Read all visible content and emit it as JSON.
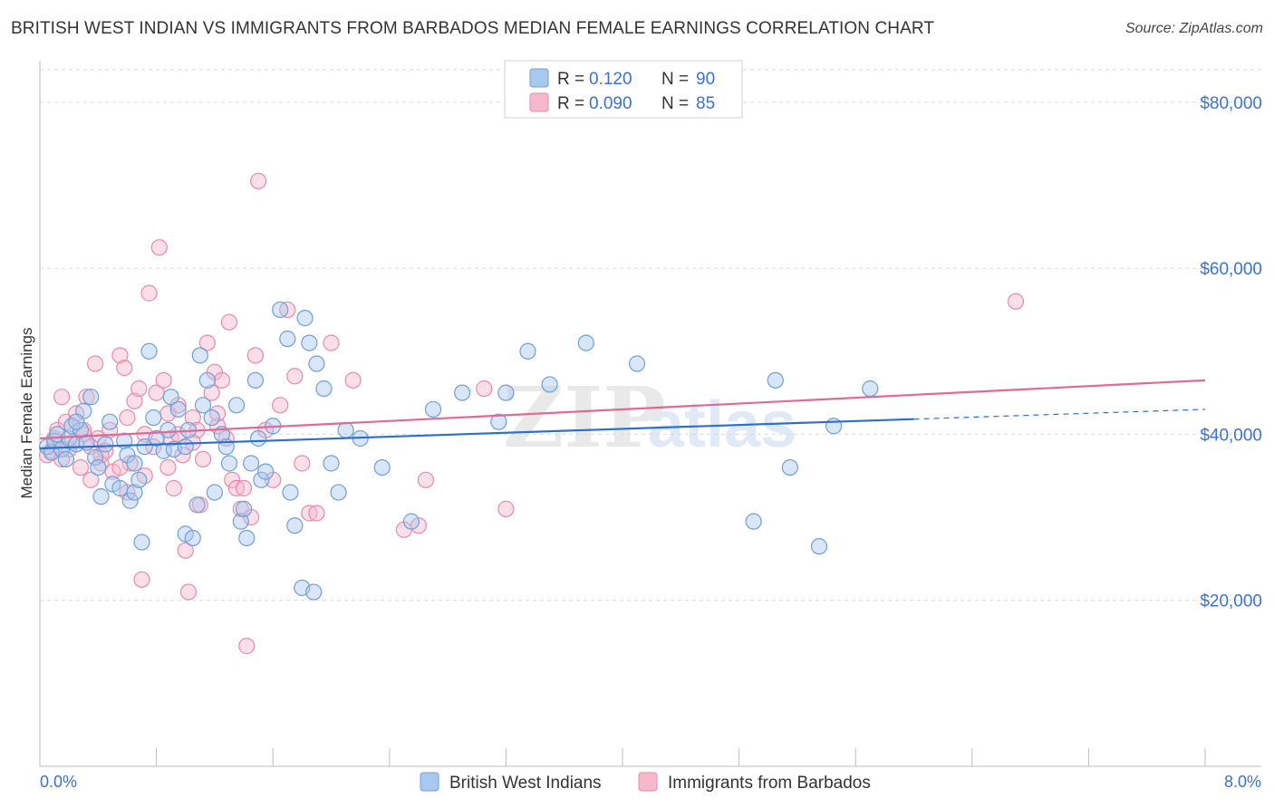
{
  "title": "BRITISH WEST INDIAN VS IMMIGRANTS FROM BARBADOS MEDIAN FEMALE EARNINGS CORRELATION CHART",
  "source": "Source: ZipAtlas.com",
  "watermark": {
    "zip": "ZIP",
    "atlas": "atlas"
  },
  "colors": {
    "blue_fill": "#a9c8f0",
    "blue_stroke": "#6f9fd8",
    "blue_line": "#2b6fcc",
    "pink_fill": "#f6b8cb",
    "pink_stroke": "#e88aa8",
    "pink_line": "#e06a95",
    "axis_value": "#3a73cc",
    "grid": "#d9d9d9"
  },
  "legend": {
    "items": [
      {
        "r_label": "R =",
        "r_value": "0.120",
        "n_label": "N =",
        "n_value": "90"
      },
      {
        "r_label": "R =",
        "r_value": "0.090",
        "n_label": "N =",
        "n_value": "85"
      }
    ]
  },
  "bottom_legend": [
    "British West Indians",
    "Immigrants from Barbados"
  ],
  "chart_data": {
    "type": "scatter",
    "xlabel": "",
    "ylabel": "Median Female Earnings",
    "xlim": [
      0,
      8
    ],
    "ylim": [
      0,
      85000
    ],
    "x_tick_labels": [
      "0.0%",
      "8.0%"
    ],
    "y_ticks": [
      20000,
      40000,
      60000,
      80000
    ],
    "y_tick_labels": [
      "$20,000",
      "$40,000",
      "$60,000",
      "$80,000"
    ],
    "grid": true,
    "legend_position": "top-center",
    "series": [
      {
        "name": "British West Indians",
        "r": 0.12,
        "n": 90,
        "trend": {
          "x0": 0,
          "y0": 38300,
          "x1": 8,
          "y1": 43000,
          "solid_until": 6.0
        },
        "points": [
          [
            0.05,
            38500
          ],
          [
            0.08,
            37800
          ],
          [
            0.1,
            39200
          ],
          [
            0.12,
            40000
          ],
          [
            0.15,
            38200
          ],
          [
            0.18,
            37000
          ],
          [
            0.2,
            39500
          ],
          [
            0.22,
            41000
          ],
          [
            0.25,
            38800
          ],
          [
            0.28,
            40500
          ],
          [
            0.3,
            42800
          ],
          [
            0.32,
            39000
          ],
          [
            0.35,
            44500
          ],
          [
            0.38,
            37200
          ],
          [
            0.4,
            36000
          ],
          [
            0.42,
            32500
          ],
          [
            0.45,
            38800
          ],
          [
            0.48,
            41500
          ],
          [
            0.5,
            34000
          ],
          [
            0.55,
            33500
          ],
          [
            0.58,
            39200
          ],
          [
            0.6,
            37500
          ],
          [
            0.62,
            32000
          ],
          [
            0.65,
            33000
          ],
          [
            0.68,
            34500
          ],
          [
            0.7,
            27000
          ],
          [
            0.72,
            38500
          ],
          [
            0.75,
            50000
          ],
          [
            0.78,
            42000
          ],
          [
            0.8,
            39500
          ],
          [
            0.85,
            38000
          ],
          [
            0.88,
            40500
          ],
          [
            0.9,
            44500
          ],
          [
            0.92,
            38200
          ],
          [
            0.95,
            43000
          ],
          [
            1.0,
            28000
          ],
          [
            1.02,
            40500
          ],
          [
            1.05,
            27500
          ],
          [
            1.08,
            31500
          ],
          [
            1.1,
            49500
          ],
          [
            1.12,
            43500
          ],
          [
            1.15,
            46500
          ],
          [
            1.18,
            42000
          ],
          [
            1.2,
            33000
          ],
          [
            1.25,
            40000
          ],
          [
            1.28,
            38500
          ],
          [
            1.3,
            36500
          ],
          [
            1.35,
            43500
          ],
          [
            1.38,
            29500
          ],
          [
            1.4,
            31000
          ],
          [
            1.42,
            27500
          ],
          [
            1.45,
            36500
          ],
          [
            1.48,
            46500
          ],
          [
            1.5,
            39500
          ],
          [
            1.52,
            34500
          ],
          [
            1.55,
            35500
          ],
          [
            1.6,
            41000
          ],
          [
            1.65,
            55000
          ],
          [
            1.7,
            51500
          ],
          [
            1.72,
            33000
          ],
          [
            1.75,
            29000
          ],
          [
            1.8,
            21500
          ],
          [
            1.82,
            54000
          ],
          [
            1.85,
            51000
          ],
          [
            1.88,
            21000
          ],
          [
            1.9,
            48500
          ],
          [
            1.95,
            45500
          ],
          [
            2.0,
            36500
          ],
          [
            2.05,
            33000
          ],
          [
            2.1,
            40500
          ],
          [
            2.2,
            39500
          ],
          [
            2.35,
            36000
          ],
          [
            2.55,
            29500
          ],
          [
            2.7,
            43000
          ],
          [
            2.9,
            45000
          ],
          [
            3.15,
            41500
          ],
          [
            3.2,
            45000
          ],
          [
            3.35,
            50000
          ],
          [
            3.5,
            46000
          ],
          [
            3.75,
            51000
          ],
          [
            4.1,
            48500
          ],
          [
            4.9,
            29500
          ],
          [
            5.05,
            46500
          ],
          [
            5.15,
            36000
          ],
          [
            5.35,
            26500
          ],
          [
            5.45,
            41000
          ],
          [
            5.7,
            45500
          ],
          [
            0.25,
            41500
          ],
          [
            0.65,
            36500
          ],
          [
            1.0,
            38500
          ]
        ]
      },
      {
        "name": "Immigrants from Barbados",
        "r": 0.09,
        "n": 85,
        "trend": {
          "x0": 0,
          "y0": 39500,
          "x1": 8,
          "y1": 46500,
          "solid_until": 8.0
        },
        "points": [
          [
            0.05,
            37500
          ],
          [
            0.08,
            38000
          ],
          [
            0.1,
            39500
          ],
          [
            0.12,
            40500
          ],
          [
            0.15,
            37000
          ],
          [
            0.18,
            41500
          ],
          [
            0.2,
            38200
          ],
          [
            0.22,
            39000
          ],
          [
            0.25,
            42500
          ],
          [
            0.28,
            36000
          ],
          [
            0.3,
            40000
          ],
          [
            0.32,
            44500
          ],
          [
            0.35,
            34500
          ],
          [
            0.38,
            48500
          ],
          [
            0.4,
            39500
          ],
          [
            0.42,
            36500
          ],
          [
            0.45,
            38000
          ],
          [
            0.48,
            40500
          ],
          [
            0.5,
            35500
          ],
          [
            0.55,
            49500
          ],
          [
            0.58,
            48000
          ],
          [
            0.6,
            42000
          ],
          [
            0.62,
            36500
          ],
          [
            0.65,
            44000
          ],
          [
            0.68,
            45500
          ],
          [
            0.7,
            22500
          ],
          [
            0.72,
            35000
          ],
          [
            0.75,
            57000
          ],
          [
            0.78,
            38500
          ],
          [
            0.8,
            45000
          ],
          [
            0.82,
            62500
          ],
          [
            0.85,
            46500
          ],
          [
            0.88,
            42500
          ],
          [
            0.9,
            39500
          ],
          [
            0.92,
            33500
          ],
          [
            0.95,
            40000
          ],
          [
            0.98,
            37500
          ],
          [
            1.0,
            26000
          ],
          [
            1.02,
            21000
          ],
          [
            1.05,
            42000
          ],
          [
            1.08,
            40500
          ],
          [
            1.1,
            31500
          ],
          [
            1.12,
            37000
          ],
          [
            1.15,
            51000
          ],
          [
            1.18,
            45000
          ],
          [
            1.2,
            47500
          ],
          [
            1.22,
            41000
          ],
          [
            1.25,
            46500
          ],
          [
            1.28,
            39500
          ],
          [
            1.3,
            53500
          ],
          [
            1.32,
            34500
          ],
          [
            1.35,
            33500
          ],
          [
            1.38,
            31000
          ],
          [
            1.4,
            33500
          ],
          [
            1.42,
            14500
          ],
          [
            1.45,
            30000
          ],
          [
            1.48,
            49500
          ],
          [
            1.5,
            70500
          ],
          [
            1.55,
            40500
          ],
          [
            1.6,
            34500
          ],
          [
            1.65,
            43500
          ],
          [
            1.7,
            55000
          ],
          [
            1.75,
            47000
          ],
          [
            1.8,
            36500
          ],
          [
            1.85,
            30500
          ],
          [
            1.9,
            30500
          ],
          [
            2.0,
            51000
          ],
          [
            2.15,
            46500
          ],
          [
            2.5,
            28500
          ],
          [
            2.6,
            29000
          ],
          [
            2.65,
            34500
          ],
          [
            3.05,
            45500
          ],
          [
            3.2,
            31000
          ],
          [
            0.15,
            44500
          ],
          [
            0.35,
            38500
          ],
          [
            0.55,
            36000
          ],
          [
            0.72,
            40000
          ],
          [
            0.88,
            36000
          ],
          [
            1.05,
            39000
          ],
          [
            1.22,
            42500
          ],
          [
            0.6,
            33000
          ],
          [
            0.42,
            37500
          ],
          [
            0.3,
            40500
          ],
          [
            6.7,
            56000
          ],
          [
            0.95,
            43500
          ]
        ]
      }
    ]
  }
}
